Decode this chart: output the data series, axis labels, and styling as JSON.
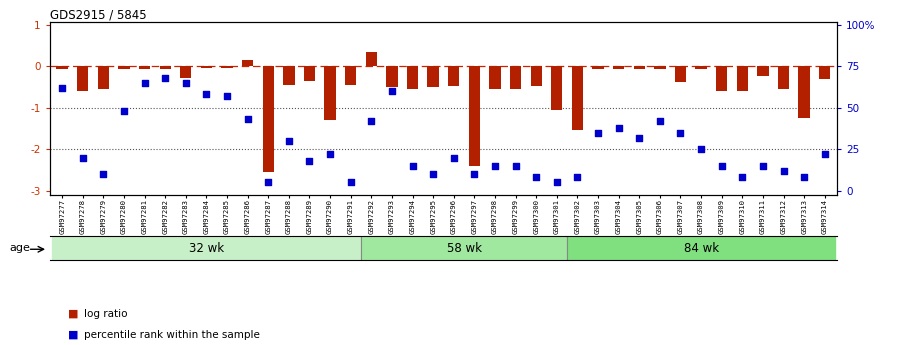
{
  "title": "GDS2915 / 5845",
  "samples": [
    "GSM97277",
    "GSM97278",
    "GSM97279",
    "GSM97280",
    "GSM97281",
    "GSM97282",
    "GSM97283",
    "GSM97284",
    "GSM97285",
    "GSM97286",
    "GSM97287",
    "GSM97288",
    "GSM97289",
    "GSM97290",
    "GSM97291",
    "GSM97292",
    "GSM97293",
    "GSM97294",
    "GSM97295",
    "GSM97296",
    "GSM97297",
    "GSM97298",
    "GSM97299",
    "GSM97300",
    "GSM97301",
    "GSM97302",
    "GSM97303",
    "GSM97304",
    "GSM97305",
    "GSM97306",
    "GSM97307",
    "GSM97308",
    "GSM97309",
    "GSM97310",
    "GSM97311",
    "GSM97312",
    "GSM97313",
    "GSM97314"
  ],
  "log_ratio": [
    -0.08,
    -0.6,
    -0.55,
    -0.07,
    -0.07,
    -0.07,
    -0.28,
    -0.04,
    -0.04,
    0.15,
    -2.55,
    -0.45,
    -0.35,
    -1.3,
    -0.45,
    0.35,
    -0.5,
    -0.55,
    -0.5,
    -0.48,
    -2.4,
    -0.55,
    -0.55,
    -0.48,
    -1.05,
    -1.55,
    -0.08,
    -0.08,
    -0.08,
    -0.08,
    -0.38,
    -0.08,
    -0.6,
    -0.6,
    -0.25,
    -0.55,
    -1.25,
    -0.3
  ],
  "percentile_rank": [
    62,
    20,
    10,
    48,
    65,
    68,
    65,
    58,
    57,
    43,
    5,
    30,
    18,
    22,
    5,
    42,
    60,
    15,
    10,
    20,
    10,
    15,
    15,
    8,
    5,
    8,
    35,
    38,
    32,
    42,
    35,
    25,
    15,
    8,
    15,
    12,
    8,
    22
  ],
  "group_labels": [
    "32 wk",
    "58 wk",
    "84 wk"
  ],
  "group_ranges": [
    [
      0,
      15
    ],
    [
      15,
      25
    ],
    [
      25,
      38
    ]
  ],
  "group_colors": [
    "#c8f0c8",
    "#a0e8a0",
    "#80e080"
  ],
  "ylim": [
    -3.1,
    1.05
  ],
  "yticks_left": [
    1,
    0,
    -1,
    -2,
    -3
  ],
  "yticks_right_vals": [
    100,
    75,
    50,
    25,
    0
  ],
  "yticks_right_labels": [
    "100%",
    "75",
    "50",
    "25",
    "0"
  ],
  "bar_color": "#b22000",
  "dot_color": "#0000cc",
  "legend_bar_label": "log ratio",
  "legend_dot_label": "percentile rank within the sample",
  "age_label": "age",
  "left_tick_color": "#cc3300",
  "right_tick_color": "#0000cc"
}
